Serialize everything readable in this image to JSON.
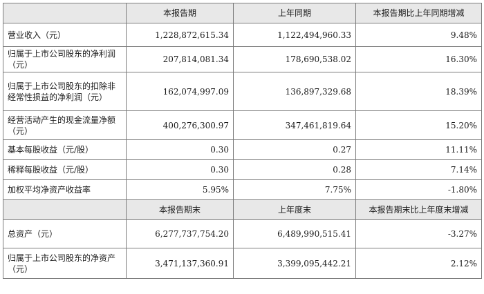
{
  "table1": {
    "headers": [
      "",
      "本报告期",
      "上年同期",
      "本报告期比上年同期增减"
    ],
    "rows": [
      {
        "label": "营业收入（元）",
        "current": "1,228,872,615.34",
        "prior": "1,122,494,960.33",
        "change": "9.48%"
      },
      {
        "label": "归属于上市公司股东的净利润（元）",
        "current": "207,814,081.34",
        "prior": "178,690,538.02",
        "change": "16.30%"
      },
      {
        "label": "归属于上市公司股东的扣除非经常性损益的净利润（元）",
        "current": "162,074,997.09",
        "prior": "136,897,329.68",
        "change": "18.39%"
      },
      {
        "label": "经营活动产生的现金流量净额（元）",
        "current": "400,276,300.97",
        "prior": "347,461,819.64",
        "change": "15.20%"
      },
      {
        "label": "基本每股收益（元/股）",
        "current": "0.30",
        "prior": "0.27",
        "change": "11.11%"
      },
      {
        "label": "稀释每股收益（元/股）",
        "current": "0.30",
        "prior": "0.28",
        "change": "7.14%"
      },
      {
        "label": "加权平均净资产收益率",
        "current": "5.95%",
        "prior": "7.75%",
        "change": "-1.80%"
      }
    ]
  },
  "table2": {
    "headers": [
      "",
      "本报告期末",
      "上年度末",
      "本报告期末比上年度末增减"
    ],
    "rows": [
      {
        "label": "总资产（元）",
        "current": "6,277,737,754.20",
        "prior": "6,489,990,515.41",
        "change": "-3.27%"
      },
      {
        "label": "归属于上市公司股东的净资产（元）",
        "current": "3,471,137,360.91",
        "prior": "3,399,095,442.21",
        "change": "2.12%"
      }
    ]
  }
}
